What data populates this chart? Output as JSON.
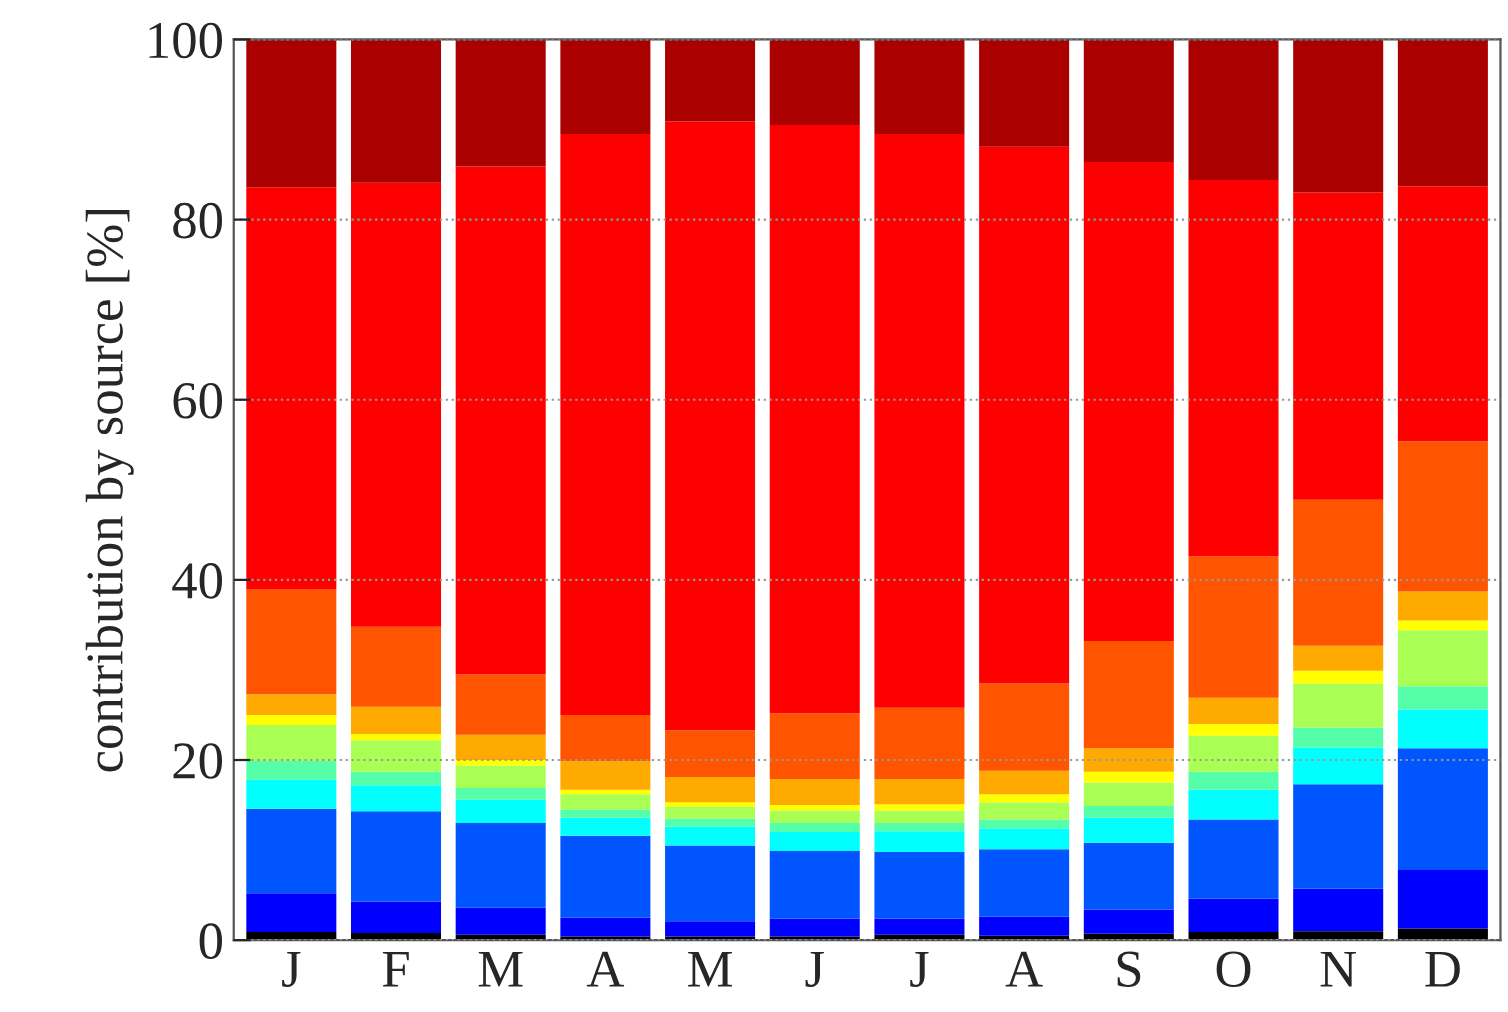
{
  "chart_data": {
    "type": "bar",
    "stacked": true,
    "ylabel": "contribution by source [%]",
    "categories": [
      "J",
      "F",
      "M",
      "A",
      "M",
      "J",
      "J",
      "A",
      "S",
      "O",
      "N",
      "D"
    ],
    "ylim": [
      0,
      100
    ],
    "yticks": [
      0,
      20,
      40,
      60,
      80,
      100
    ],
    "grid": "y",
    "series": [
      {
        "color": "#000000",
        "values": [
          0.9,
          0.8,
          0.6,
          0.4,
          0.4,
          0.4,
          0.6,
          0.5,
          0.7,
          0.9,
          1.0,
          1.3
        ]
      },
      {
        "color": "#0000ff",
        "values": [
          4.3,
          3.5,
          3.0,
          2.1,
          1.7,
          2.0,
          1.8,
          2.1,
          2.7,
          3.7,
          4.7,
          6.5
        ]
      },
      {
        "color": "#0055ff",
        "values": [
          9.4,
          10.0,
          9.4,
          9.1,
          8.4,
          7.5,
          7.4,
          7.5,
          7.4,
          8.8,
          11.6,
          13.5
        ]
      },
      {
        "color": "#00ffff",
        "values": [
          3.2,
          2.9,
          2.6,
          2.0,
          2.1,
          2.1,
          2.3,
          2.3,
          2.8,
          3.3,
          4.1,
          4.3
        ]
      },
      {
        "color": "#55ffaa",
        "values": [
          2.1,
          1.5,
          1.3,
          0.9,
          0.9,
          1.0,
          0.9,
          1.0,
          1.3,
          2.0,
          2.2,
          2.6
        ]
      },
      {
        "color": "#aaff55",
        "values": [
          4.0,
          3.5,
          2.5,
          1.7,
          1.3,
          1.4,
          1.4,
          1.9,
          2.6,
          4.0,
          4.9,
          6.2
        ]
      },
      {
        "color": "#ffff00",
        "values": [
          1.1,
          0.7,
          0.6,
          0.5,
          0.5,
          0.6,
          0.7,
          0.9,
          1.2,
          1.3,
          1.4,
          1.1
        ]
      },
      {
        "color": "#ffaa00",
        "values": [
          2.3,
          3.0,
          2.8,
          3.2,
          2.8,
          2.9,
          2.8,
          2.6,
          2.6,
          2.9,
          2.8,
          3.2
        ]
      },
      {
        "color": "#ff5500",
        "values": [
          11.7,
          8.9,
          6.7,
          5.1,
          5.2,
          7.3,
          7.9,
          9.7,
          11.9,
          15.7,
          16.2,
          16.7
        ]
      },
      {
        "color": "#ff0000",
        "values": [
          44.6,
          49.3,
          56.4,
          64.5,
          67.6,
          65.3,
          63.7,
          59.6,
          53.2,
          41.8,
          34.1,
          28.3
        ]
      },
      {
        "color": "#aa0000",
        "values": [
          16.4,
          15.9,
          14.1,
          10.5,
          9.1,
          9.5,
          10.5,
          11.9,
          13.6,
          15.6,
          17.0,
          16.3
        ]
      }
    ]
  }
}
